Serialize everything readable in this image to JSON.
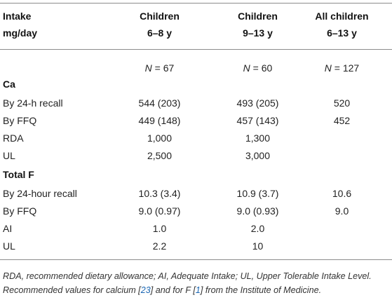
{
  "header": {
    "col0": [
      "Intake",
      "mg/day"
    ],
    "col1": [
      "Children",
      "6–8 y"
    ],
    "col2": [
      "Children",
      "9–13 y"
    ],
    "col3": [
      "All children",
      "6–13 y"
    ]
  },
  "n_row": {
    "col1": {
      "label": "N",
      "value": " = 67"
    },
    "col2": {
      "label": "N",
      "value": " = 60"
    },
    "col3": {
      "label": "N",
      "value": " = 127"
    }
  },
  "sections": [
    {
      "title": "Ca",
      "rows": [
        {
          "label": "By 24-h recall",
          "c1": "544 (203)",
          "c2": "493 (205)",
          "c3": "520"
        },
        {
          "label": "By FFQ",
          "c1": "449 (148)",
          "c2": "457 (143)",
          "c3": "452"
        },
        {
          "label": "RDA",
          "c1": "1,000",
          "c2": "1,300",
          "c3": ""
        },
        {
          "label": "UL",
          "c1": "2,500",
          "c2": "3,000",
          "c3": ""
        }
      ]
    },
    {
      "title": "Total F",
      "rows": [
        {
          "label": "By 24-hour recall",
          "c1": "10.3 (3.4)",
          "c2": "10.9 (3.7)",
          "c3": "10.6"
        },
        {
          "label": "By FFQ",
          "c1": "9.0 (0.97)",
          "c2": "9.0 (0.93)",
          "c3": "9.0"
        },
        {
          "label": "AI",
          "c1": "1.0",
          "c2": "2.0",
          "c3": ""
        },
        {
          "label": "UL",
          "c1": "2.2",
          "c2": "10",
          "c3": ""
        }
      ]
    }
  ],
  "footnote": {
    "part1": "RDA, recommended dietary allowance; AI, Adequate Intake; UL, Upper Tolerable Intake Level. Recommended values for calcium [",
    "ref1": "23",
    "part2": "] and for F [",
    "ref2": "1",
    "part3": "] from the Institute of Medicine."
  },
  "colors": {
    "rule": "#8c8c8c",
    "link": "#1a66b3"
  }
}
